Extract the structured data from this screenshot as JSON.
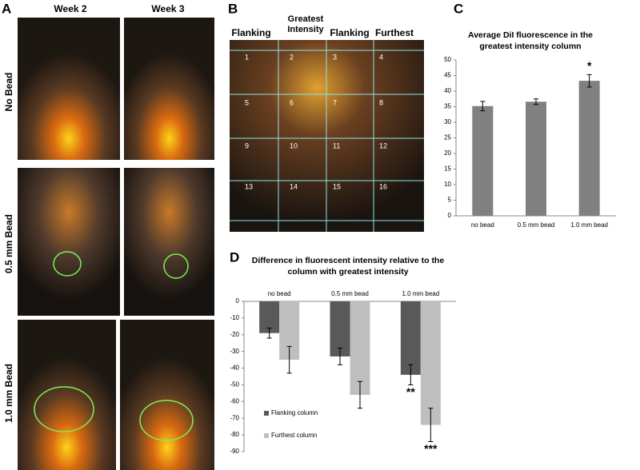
{
  "panel_labels": [
    "A",
    "B",
    "C",
    "D"
  ],
  "panel_a": {
    "columns": [
      "Week 2",
      "Week 3"
    ],
    "rows": [
      "No Bead",
      "0.5 mm Bead",
      "1.0 mm Bead"
    ]
  },
  "panel_b": {
    "columns": [
      "Flanking",
      "Greatest Intensity",
      "Flanking",
      "Furthest"
    ],
    "cells": [
      1,
      2,
      3,
      4,
      5,
      6,
      7,
      8,
      9,
      10,
      11,
      12,
      13,
      14,
      15,
      16
    ]
  },
  "chart_data": [
    {
      "type": "bar",
      "title": "Average DiI fluorescence in the greatest intensity column",
      "categories": [
        "no bead",
        "0.5 mm bead",
        "1.0 mm bead"
      ],
      "series": [
        {
          "color": "#808080",
          "values": [
            35.2,
            36.6,
            43.3
          ],
          "errors": [
            1.5,
            0.9,
            2.0
          ]
        }
      ],
      "ylim": [
        0,
        50
      ],
      "yticks": [
        0,
        5,
        10,
        15,
        20,
        25,
        30,
        35,
        40,
        45,
        50
      ],
      "annotations": [
        {
          "text": "*",
          "category": "1.0 mm bead"
        }
      ]
    },
    {
      "type": "bar",
      "title": "Difference in fluorescent intensity relative to the column with greatest intensity",
      "categories": [
        "no bead",
        "0.5 mm bead",
        "1.0 mm bead"
      ],
      "series": [
        {
          "name": "Flanking column",
          "color": "#595959",
          "values": [
            -19,
            -33,
            -44
          ],
          "errors": [
            3,
            5,
            6
          ]
        },
        {
          "name": "Furthest column",
          "color": "#bfbfbf",
          "values": [
            -35,
            -56,
            -74
          ],
          "errors": [
            8,
            8,
            10
          ]
        }
      ],
      "ylim": [
        -90,
        0
      ],
      "yticks": [
        -90,
        -80,
        -70,
        -60,
        -50,
        -40,
        -30,
        -20,
        -10,
        0
      ],
      "annotations": [
        {
          "text": "**",
          "series": "Flanking column",
          "category": "1.0 mm bead"
        },
        {
          "text": "***",
          "series": "Furthest column",
          "category": "1.0 mm bead"
        }
      ]
    }
  ]
}
